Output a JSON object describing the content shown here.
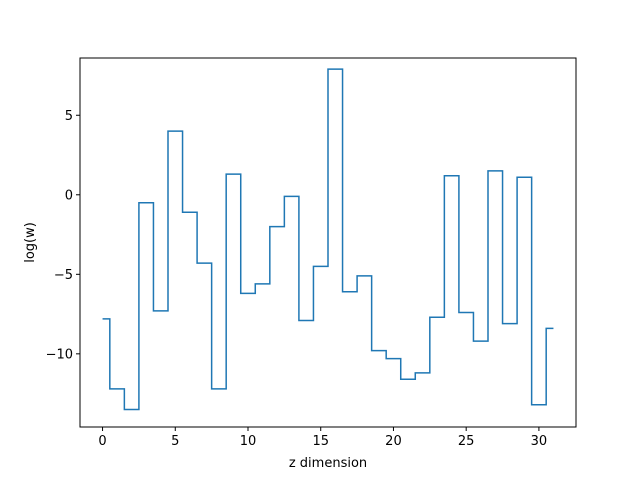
{
  "chart_data": {
    "type": "line",
    "drawstyle": "steps-mid",
    "title": "",
    "xlabel": "z dimension",
    "ylabel": "log(w)",
    "xlim": [
      -1.55,
      32.55
    ],
    "ylim": [
      -14.6,
      8.6
    ],
    "xticks": [
      0,
      5,
      10,
      15,
      20,
      25,
      30
    ],
    "xtick_labels": [
      "0",
      "5",
      "10",
      "15",
      "20",
      "25",
      "30"
    ],
    "yticks": [
      -10,
      -5,
      0,
      5
    ],
    "ytick_labels": [
      "−10",
      "−5",
      "0",
      "5"
    ],
    "grid": false,
    "series": [
      {
        "color": "#1f77b4",
        "x": [
          0,
          1,
          2,
          3,
          4,
          5,
          6,
          7,
          8,
          9,
          10,
          11,
          12,
          13,
          14,
          15,
          16,
          17,
          18,
          19,
          20,
          21,
          22,
          23,
          24,
          25,
          26,
          27,
          28,
          29,
          30,
          31
        ],
        "y": [
          -7.8,
          -12.2,
          -13.5,
          -0.5,
          -7.3,
          4.0,
          -1.1,
          -4.3,
          -12.2,
          1.3,
          -6.2,
          -5.6,
          -2.0,
          -0.1,
          -7.9,
          -4.5,
          7.9,
          -6.1,
          -5.1,
          -9.8,
          -10.3,
          -11.6,
          -11.2,
          -7.7,
          1.2,
          -7.4,
          -9.2,
          1.5,
          -8.1,
          1.1,
          -13.2,
          -8.4
        ]
      }
    ]
  }
}
